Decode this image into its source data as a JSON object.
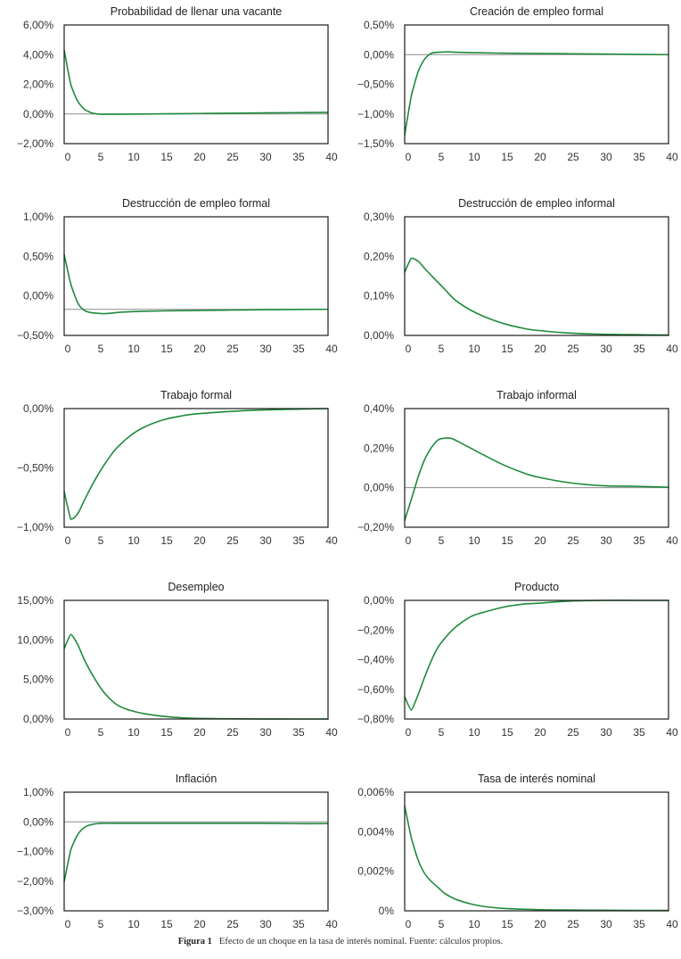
{
  "figure": {
    "caption_label": "Figura 1",
    "caption_text": "Efecto de un choque en la tasa de interés nominal. Fuente: cálculos propios.",
    "line_color": "#1f8a3b",
    "reference_line_color": "#8c8c8c"
  },
  "chart_data": [
    {
      "type": "line",
      "title": "Probabilidad de llenar una vacante",
      "xlabel": "",
      "ylabel": "",
      "xlim": [
        0,
        40
      ],
      "ylim": [
        -2.0,
        6.0
      ],
      "xticks": [
        "0",
        "5",
        "10",
        "15",
        "20",
        "25",
        "30",
        "35",
        "40"
      ],
      "yticks": [
        6.0,
        4.0,
        2.0,
        0.0,
        -2.0
      ],
      "ytick_labels": [
        "6,00%",
        "4,00%",
        "2,00%",
        "0,00%",
        "−2,00%"
      ],
      "reference_line": 0.0,
      "grid": false,
      "series": [
        {
          "name": "Probabilidad de llenar una vacante",
          "x": [
            0,
            1,
            2,
            3,
            4,
            5,
            6,
            8,
            10,
            15,
            20,
            25,
            30,
            35,
            40
          ],
          "values": [
            4.3,
            2.0,
            0.9,
            0.35,
            0.1,
            0.0,
            -0.02,
            -0.02,
            -0.01,
            0.01,
            0.03,
            0.05,
            0.07,
            0.09,
            0.11
          ]
        }
      ]
    },
    {
      "type": "line",
      "title": "Creación de empleo formal",
      "xlabel": "",
      "ylabel": "",
      "xlim": [
        0,
        40
      ],
      "ylim": [
        -1.5,
        0.5
      ],
      "xticks": [
        "0",
        "5",
        "10",
        "15",
        "20",
        "25",
        "30",
        "35",
        "40"
      ],
      "yticks": [
        0.5,
        0.0,
        -0.5,
        -1.0,
        -1.5
      ],
      "ytick_labels": [
        "0,50%",
        "0,00%",
        "−0,50%",
        "−1,00%",
        "−1,50%"
      ],
      "reference_line": 0.0,
      "grid": false,
      "series": [
        {
          "name": "Creación de empleo formal",
          "x": [
            0,
            1,
            2,
            3,
            4,
            5,
            6,
            7,
            8,
            10,
            15,
            20,
            25,
            30,
            35,
            40
          ],
          "values": [
            -1.35,
            -0.7,
            -0.3,
            -0.08,
            0.02,
            0.04,
            0.045,
            0.045,
            0.04,
            0.035,
            0.025,
            0.02,
            0.015,
            0.01,
            0.005,
            0.0
          ]
        }
      ]
    },
    {
      "type": "line",
      "title": "Destrucción de empleo formal",
      "xlabel": "",
      "ylabel": "",
      "xlim": [
        0,
        40
      ],
      "ylim": [
        -0.5,
        1.0
      ],
      "xticks": [
        "0",
        "5",
        "10",
        "15",
        "20",
        "25",
        "30",
        "35",
        "40"
      ],
      "yticks": [
        1.0,
        0.5,
        0.0,
        -0.5
      ],
      "ytick_labels": [
        "1,00%",
        "0,50%",
        "0,00%",
        "−0,50%"
      ],
      "reference_line": -0.17,
      "grid": false,
      "series": [
        {
          "name": "Destrucción de empleo formal",
          "x": [
            0,
            1,
            2,
            3,
            4,
            5,
            6,
            7,
            8,
            10,
            12,
            15,
            20,
            25,
            30,
            35,
            40
          ],
          "values": [
            0.52,
            0.15,
            -0.08,
            -0.18,
            -0.21,
            -0.22,
            -0.225,
            -0.22,
            -0.21,
            -0.2,
            -0.195,
            -0.19,
            -0.185,
            -0.18,
            -0.175,
            -0.172,
            -0.17
          ]
        }
      ]
    },
    {
      "type": "line",
      "title": "Destrucción de empleo informal",
      "xlabel": "",
      "ylabel": "",
      "xlim": [
        0,
        40
      ],
      "ylim": [
        0.0,
        0.3
      ],
      "xticks": [
        "0",
        "5",
        "10",
        "15",
        "20",
        "25",
        "30",
        "35",
        "40"
      ],
      "yticks": [
        0.3,
        0.2,
        0.1,
        0.0
      ],
      "ytick_labels": [
        "0,30%",
        "0,20%",
        "0,10%",
        "0,00%"
      ],
      "reference_line": 0.0,
      "grid": false,
      "series": [
        {
          "name": "Destrucción de empleo informal",
          "x": [
            0,
            1,
            2,
            3,
            4,
            5,
            6,
            7,
            8,
            10,
            12,
            15,
            18,
            20,
            25,
            30,
            35,
            40
          ],
          "values": [
            0.16,
            0.195,
            0.188,
            0.17,
            0.152,
            0.135,
            0.118,
            0.1,
            0.085,
            0.064,
            0.048,
            0.03,
            0.018,
            0.013,
            0.006,
            0.003,
            0.002,
            0.001
          ]
        }
      ]
    },
    {
      "type": "line",
      "title": "Trabajo formal",
      "xlabel": "",
      "ylabel": "",
      "xlim": [
        0,
        40
      ],
      "ylim": [
        -1.0,
        0.0
      ],
      "xticks": [
        "0",
        "5",
        "10",
        "15",
        "20",
        "25",
        "30",
        "35",
        "40"
      ],
      "yticks": [
        0.0,
        -0.5,
        -1.0
      ],
      "ytick_labels": [
        "0,00%",
        "−0,50%",
        "−1,00%"
      ],
      "reference_line": 0.0,
      "grid": false,
      "series": [
        {
          "name": "Trabajo formal",
          "x": [
            0,
            1,
            2,
            3,
            4,
            5,
            6,
            7,
            8,
            10,
            12,
            15,
            18,
            20,
            25,
            30,
            35,
            40
          ],
          "values": [
            -0.7,
            -0.93,
            -0.89,
            -0.78,
            -0.67,
            -0.57,
            -0.48,
            -0.4,
            -0.33,
            -0.23,
            -0.16,
            -0.095,
            -0.06,
            -0.045,
            -0.025,
            -0.012,
            -0.005,
            0.0
          ]
        }
      ]
    },
    {
      "type": "line",
      "title": "Trabajo informal",
      "xlabel": "",
      "ylabel": "",
      "xlim": [
        0,
        40
      ],
      "ylim": [
        -0.2,
        0.4
      ],
      "xticks": [
        "0",
        "5",
        "10",
        "15",
        "20",
        "25",
        "30",
        "35",
        "40"
      ],
      "yticks": [
        0.4,
        0.2,
        0.0,
        -0.2
      ],
      "ytick_labels": [
        "0,40%",
        "0,20%",
        "0,00%",
        "−0,20%"
      ],
      "reference_line": 0.0,
      "grid": false,
      "series": [
        {
          "name": "Trabajo informal",
          "x": [
            0,
            1,
            2,
            3,
            4,
            5,
            6,
            7,
            8,
            10,
            12,
            15,
            18,
            20,
            25,
            30,
            35,
            40
          ],
          "values": [
            -0.165,
            -0.06,
            0.05,
            0.14,
            0.2,
            0.24,
            0.25,
            0.25,
            0.235,
            0.2,
            0.165,
            0.115,
            0.075,
            0.055,
            0.025,
            0.01,
            0.007,
            0.002
          ]
        }
      ]
    },
    {
      "type": "line",
      "title": "Desempleo",
      "xlabel": "",
      "ylabel": "",
      "xlim": [
        0,
        40
      ],
      "ylim": [
        0.0,
        15.0
      ],
      "xticks": [
        "0",
        "5",
        "10",
        "15",
        "20",
        "25",
        "30",
        "35",
        "40"
      ],
      "yticks": [
        15.0,
        10.0,
        5.0,
        0.0
      ],
      "ytick_labels": [
        "15,00%",
        "10,00%",
        "5,00%",
        "0,00%"
      ],
      "reference_line": 0.0,
      "grid": false,
      "series": [
        {
          "name": "Desempleo",
          "x": [
            0,
            1,
            2,
            3,
            4,
            5,
            6,
            7,
            8,
            9,
            10,
            12,
            15,
            18,
            20,
            25,
            30,
            35,
            40
          ],
          "values": [
            8.9,
            10.7,
            9.5,
            7.6,
            6.0,
            4.6,
            3.4,
            2.5,
            1.8,
            1.4,
            1.1,
            0.7,
            0.35,
            0.15,
            0.08,
            0.03,
            0.01,
            0.0,
            0.0
          ]
        }
      ]
    },
    {
      "type": "line",
      "title": "Producto",
      "xlabel": "",
      "ylabel": "",
      "xlim": [
        0,
        40
      ],
      "ylim": [
        -0.8,
        0.0
      ],
      "xticks": [
        "0",
        "5",
        "10",
        "15",
        "20",
        "25",
        "30",
        "35",
        "40"
      ],
      "yticks": [
        0.0,
        -0.2,
        -0.4,
        -0.6,
        -0.8
      ],
      "ytick_labels": [
        "0,00%",
        "−0,20%",
        "−0,40%",
        "−0,60%",
        "−0,80%"
      ],
      "reference_line": 0.0,
      "grid": false,
      "series": [
        {
          "name": "Producto",
          "x": [
            0,
            1,
            2,
            3,
            4,
            5,
            6,
            7,
            8,
            10,
            12,
            15,
            18,
            20,
            25,
            30,
            35,
            40
          ],
          "values": [
            -0.65,
            -0.74,
            -0.64,
            -0.52,
            -0.41,
            -0.32,
            -0.26,
            -0.21,
            -0.17,
            -0.11,
            -0.08,
            -0.045,
            -0.025,
            -0.02,
            -0.005,
            0.0,
            0.0,
            0.0
          ]
        }
      ]
    },
    {
      "type": "line",
      "title": "Inflación",
      "xlabel": "",
      "ylabel": "",
      "xlim": [
        0,
        40
      ],
      "ylim": [
        -3.0,
        1.0
      ],
      "xticks": [
        "0",
        "5",
        "10",
        "15",
        "20",
        "25",
        "30",
        "35",
        "40"
      ],
      "yticks": [
        1.0,
        0.0,
        -1.0,
        -2.0,
        -3.0
      ],
      "ytick_labels": [
        "1,00%",
        "0,00%",
        "−1,00%",
        "−2,00%",
        "−3,00%"
      ],
      "reference_line": 0.0,
      "grid": false,
      "series": [
        {
          "name": "Inflación",
          "x": [
            0,
            1,
            2,
            3,
            4,
            5,
            6,
            8,
            10,
            15,
            20,
            25,
            30,
            35,
            40
          ],
          "values": [
            -2.02,
            -0.95,
            -0.45,
            -0.2,
            -0.1,
            -0.06,
            -0.05,
            -0.05,
            -0.05,
            -0.05,
            -0.05,
            -0.05,
            -0.05,
            -0.06,
            -0.06
          ]
        }
      ]
    },
    {
      "type": "line",
      "title": "Tasa de interés nominal",
      "xlabel": "",
      "ylabel": "",
      "xlim": [
        0,
        40
      ],
      "ylim": [
        0.0,
        0.006
      ],
      "xticks": [
        "0",
        "5",
        "10",
        "15",
        "20",
        "25",
        "30",
        "35",
        "40"
      ],
      "yticks": [
        0.006,
        0.004,
        0.002,
        0.0
      ],
      "ytick_labels": [
        "0,006%",
        "0,004%",
        "0,002%",
        "0%"
      ],
      "reference_line": 0.0,
      "grid": false,
      "series": [
        {
          "name": "Tasa de interés nominal",
          "x": [
            0,
            1,
            2,
            3,
            4,
            5,
            6,
            7,
            8,
            10,
            12,
            15,
            20,
            25,
            30,
            35,
            40
          ],
          "values": [
            0.0053,
            0.0037,
            0.0026,
            0.0019,
            0.0015,
            0.0012,
            0.0009,
            0.0007,
            0.00055,
            0.00035,
            0.00022,
            0.00012,
            6e-05,
            4e-05,
            3e-05,
            2e-05,
            2e-05
          ]
        }
      ]
    }
  ]
}
